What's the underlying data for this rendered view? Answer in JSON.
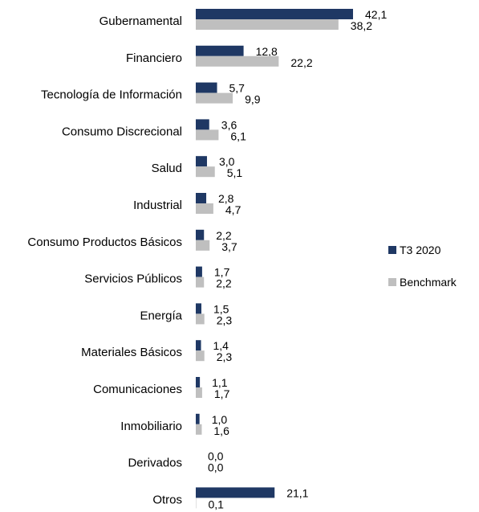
{
  "chart_data": {
    "type": "bar",
    "orientation": "horizontal",
    "categories": [
      "Gubernamental",
      "Financiero",
      "Tecnología de Información",
      "Consumo Discrecional",
      "Salud",
      "Industrial",
      "Consumo Productos Básicos",
      "Servicios Públicos",
      "Energía",
      "Materiales Básicos",
      "Comunicaciones",
      "Inmobiliario",
      "Derivados",
      "Otros"
    ],
    "series": [
      {
        "name": "T3 2020",
        "color": "#1f3864",
        "values": [
          42.1,
          12.8,
          5.7,
          3.6,
          3.0,
          2.8,
          2.2,
          1.7,
          1.5,
          1.4,
          1.1,
          1.0,
          0.0,
          21.1
        ],
        "labels": [
          "42,1",
          "12,8",
          "5,7",
          "3,6",
          "3,0",
          "2,8",
          "2,2",
          "1,7",
          "1,5",
          "1,4",
          "1,1",
          "1,0",
          "0,0",
          "21,1"
        ]
      },
      {
        "name": "Benchmark",
        "color": "#bfbfbf",
        "values": [
          38.2,
          22.2,
          9.9,
          6.1,
          5.1,
          4.7,
          3.7,
          2.2,
          2.3,
          2.3,
          1.7,
          1.6,
          0.0,
          0.1
        ],
        "labels": [
          "38,2",
          "22,2",
          "9,9",
          "6,1",
          "5,1",
          "4,7",
          "3,7",
          "2,2",
          "2,3",
          "2,3",
          "1,7",
          "1,6",
          "0,0",
          "0,1"
        ]
      }
    ],
    "xlim": [
      0,
      45
    ],
    "grid": false,
    "legend_position": "right"
  }
}
